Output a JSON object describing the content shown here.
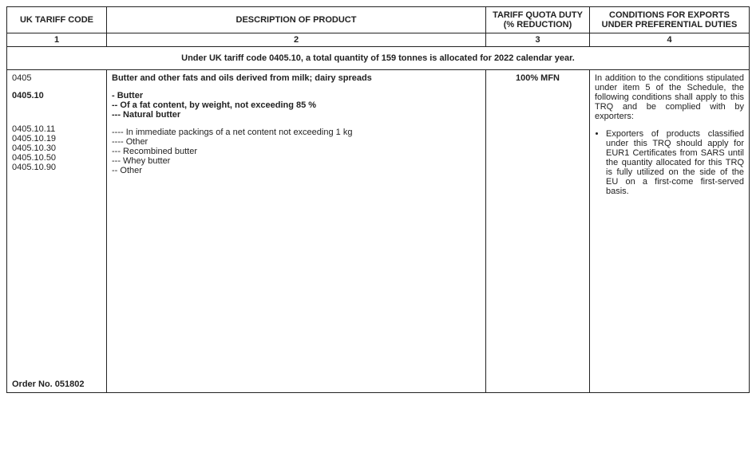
{
  "headers": {
    "col1": "UK TARIFF CODE",
    "col2": "DESCRIPTION OF PRODUCT",
    "col3": "TARIFF QUOTA DUTY (% REDUCTION)",
    "col4": "CONDITIONS FOR EXPORTS UNDER PREFERENTIAL DUTIES"
  },
  "colNums": {
    "n1": "1",
    "n2": "2",
    "n3": "3",
    "n4": "4"
  },
  "allocation": "Under UK tariff code 0405.10, a total quantity of 159 tonnes is allocated for 2022 calendar year.",
  "codes": {
    "c0405": "0405",
    "c040510": "0405.10",
    "c04051011": "0405.10.11",
    "c04051019": "0405.10.19",
    "c04051030": "0405.10.30",
    "c04051050": "0405.10.50",
    "c04051090": "0405.10.90"
  },
  "order": "Order No. 051802",
  "desc": {
    "main": "Butter and other fats and oils derived from milk; dairy spreads",
    "butter": "- Butter",
    "fat": "-- Of a fat content, by weight, not exceeding 85 %",
    "natural": "--- Natural butter",
    "pack": "---- In immediate packings of a net content not exceeding 1 kg",
    "other1": "---- Other",
    "recombined": "--- Recombined butter",
    "whey": "--- Whey butter",
    "other2": "-- Other"
  },
  "duty": "100% MFN",
  "conditions": {
    "intro": "In addition to the conditions stipulated under item 5 of the Schedule, the following conditions shall apply to this TRQ and be complied with by exporters:",
    "bullet1": "Exporters of products classified under this TRQ should apply for EUR1 Certificates from SARS until the quantity allocated for this TRQ is fully utilized on the side of the EU on a first-come first-served basis."
  }
}
